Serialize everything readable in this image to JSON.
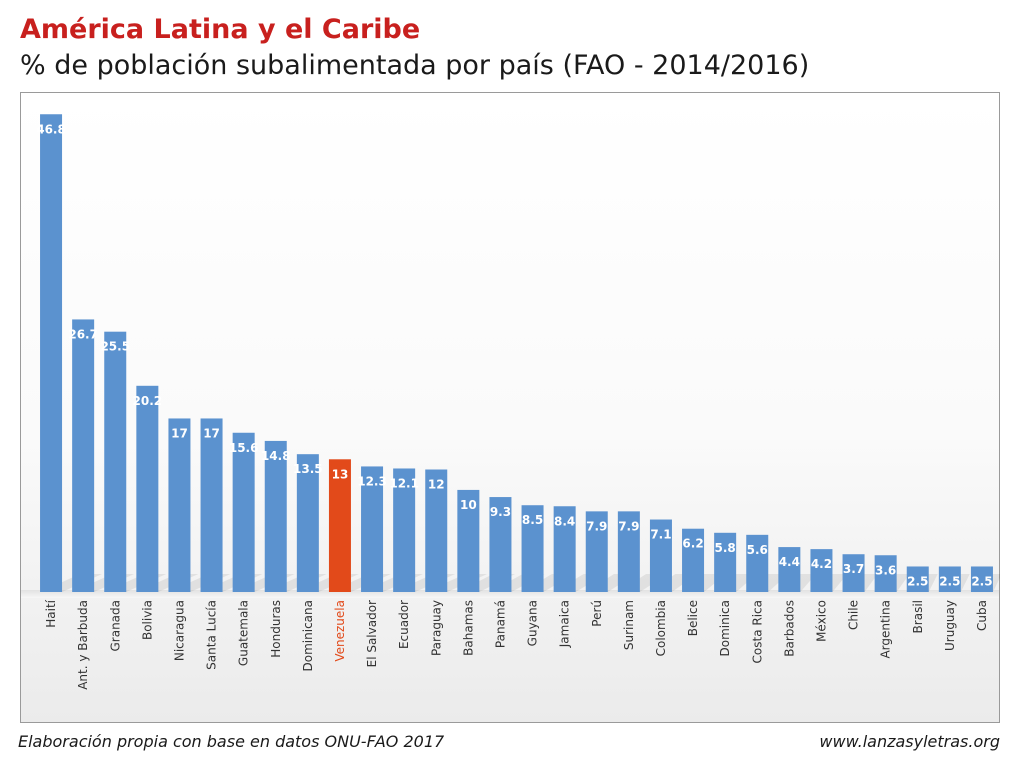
{
  "header": {
    "title": "América Latina y el Caribe",
    "subtitle": "% de población subalimentada por país (FAO - 2014/2016)"
  },
  "footer": {
    "source": "Elaboración propia con base en datos ONU-FAO 2017",
    "website": "www.lanzasyletras.org"
  },
  "colors": {
    "bar": "#5b92cf",
    "highlight": "#e24a1a",
    "title": "#c8201e",
    "label_highlight": "#e24a1a"
  },
  "chart_data": {
    "type": "bar",
    "title": "% de población subalimentada por país (FAO - 2014/2016)",
    "xlabel": "",
    "ylabel": "",
    "ylim": [
      0,
      48
    ],
    "highlight_category": "Venezuela",
    "categories": [
      "Haití",
      "Ant. y Barbuda",
      "Granada",
      "Bolivia",
      "Nicaragua",
      "Santa Lucía",
      "Guatemala",
      "Honduras",
      "Dominicana",
      "Venezuela",
      "El Salvador",
      "Ecuador",
      "Paraguay",
      "Bahamas",
      "Panamá",
      "Guyana",
      "Jamaica",
      "Perú",
      "Surinam",
      "Colombia",
      "Belice",
      "Dominica",
      "Costa Rica",
      "Barbados",
      "México",
      "Chile",
      "Argentina",
      "Brasil",
      "Uruguay",
      "Cuba"
    ],
    "values": [
      46.8,
      26.7,
      25.5,
      20.2,
      17,
      17,
      15.6,
      14.8,
      13.5,
      13,
      12.3,
      12.1,
      12,
      10,
      9.3,
      8.5,
      8.4,
      7.9,
      7.9,
      7.1,
      6.2,
      5.8,
      5.6,
      4.4,
      4.2,
      3.7,
      3.6,
      2.5,
      2.5,
      2.5
    ],
    "value_labels": [
      "46.8",
      "26.7",
      "25.5",
      "20.2",
      "17",
      "17",
      "15.6",
      "14.8",
      "13.5",
      "13",
      "12.3",
      "12.1",
      "12",
      "10",
      "9.3",
      "8.5",
      "8.4",
      "7.9",
      "7.9",
      "7.1",
      "6.2",
      "5.8",
      "5.6",
      "4.4",
      "4.2",
      "3.7",
      "3.6",
      "2.5",
      "2.5",
      "2.5"
    ]
  }
}
